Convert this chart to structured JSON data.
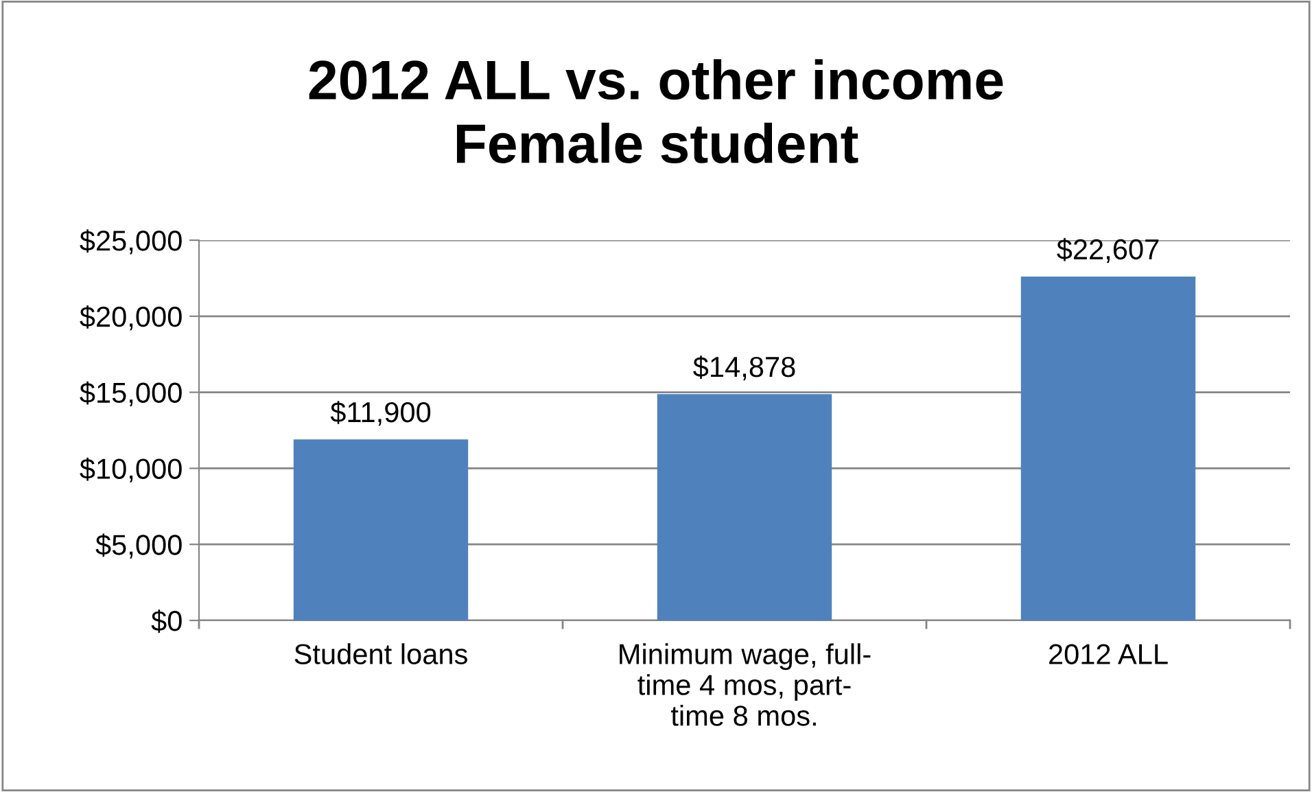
{
  "chart_data": {
    "type": "bar",
    "title": "2012 ALL vs. other income\nFemale student",
    "categories": [
      "Student loans",
      "Minimum wage, full-time 4 mos, part-time 8 mos.",
      "2012 ALL"
    ],
    "values": [
      11900,
      14878,
      22607
    ],
    "color": "#4f81bd",
    "ylim": [
      0,
      25000
    ],
    "yticks": [
      {
        "value": 0,
        "label": "$0"
      },
      {
        "value": 5000,
        "label": "$5,000"
      },
      {
        "value": 10000,
        "label": "$10,000"
      },
      {
        "value": 15000,
        "label": "$15,000"
      },
      {
        "value": 20000,
        "label": "$20,000"
      },
      {
        "value": 25000,
        "label": "$25,000"
      }
    ],
    "grid": "y",
    "value_labels": [
      "$11,900",
      "$14,878",
      "$22,607"
    ]
  }
}
